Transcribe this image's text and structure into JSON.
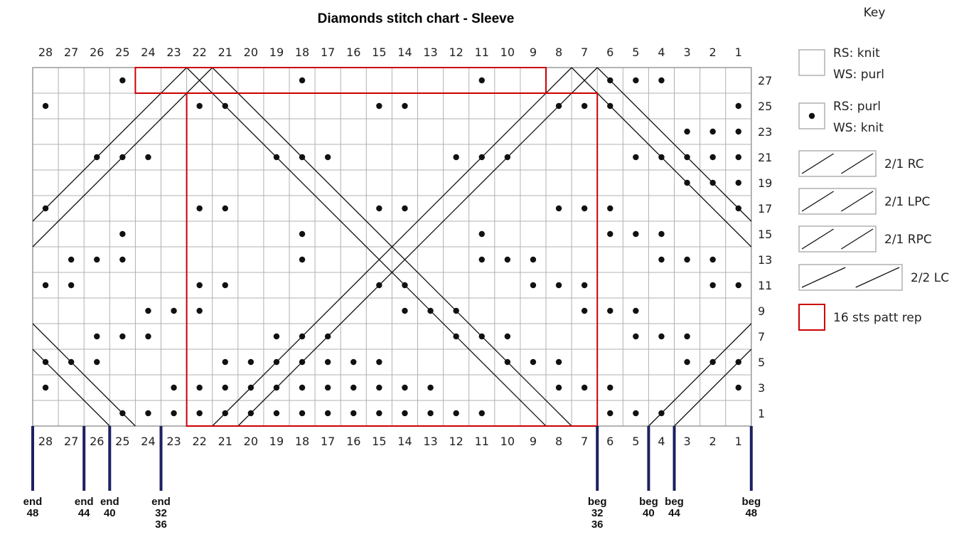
{
  "chart": {
    "title": "Diamonds stitch chart - Sleeve",
    "stitch_columns": [
      "28",
      "27",
      "26",
      "25",
      "24",
      "23",
      "22",
      "21",
      "20",
      "19",
      "18",
      "17",
      "16",
      "15",
      "14",
      "13",
      "12",
      "11",
      "10",
      "9",
      "8",
      "7",
      "6",
      "5",
      "4",
      "3",
      "2",
      "1"
    ],
    "row_labels": [
      "27",
      "25",
      "23",
      "21",
      "19",
      "17",
      "15",
      "13",
      "11",
      "9",
      "7",
      "5",
      "3",
      "1"
    ],
    "repeat": {
      "first_stitch": 22,
      "last_stitch": 7
    },
    "colors": {
      "grid": "#b0b0b0",
      "repeat_box": "#cc0000",
      "marker": "#1c2161",
      "ink": "#111111"
    }
  },
  "key": {
    "title": "Key",
    "items": [
      {
        "symbol": "knit",
        "lines": [
          "RS: knit",
          "WS: purl"
        ]
      },
      {
        "symbol": "purl",
        "lines": [
          "RS: purl",
          "WS: knit"
        ]
      },
      {
        "symbol": "2-1-rc",
        "lines": [
          "2/1 RC"
        ]
      },
      {
        "symbol": "2-1-lpc",
        "lines": [
          "2/1 LPC"
        ]
      },
      {
        "symbol": "2-1-rpc",
        "lines": [
          "2/1 RPC"
        ]
      },
      {
        "symbol": "2-2-lc",
        "lines": [
          "2/2 LC"
        ]
      },
      {
        "symbol": "repeat-box",
        "lines": [
          "16 sts patt rep"
        ]
      }
    ]
  },
  "size_markers": [
    {
      "stitch": 28,
      "lines": [
        "end",
        "48"
      ]
    },
    {
      "stitch": 26,
      "lines": [
        "end",
        "44"
      ]
    },
    {
      "stitch": 25,
      "lines": [
        "end",
        "40"
      ]
    },
    {
      "stitch": 23,
      "lines": [
        "end",
        "32",
        "36"
      ]
    },
    {
      "stitch": 7,
      "lines": [
        "beg",
        "32",
        "36"
      ]
    },
    {
      "stitch": 5,
      "lines": [
        "beg",
        "40"
      ]
    },
    {
      "stitch": 4,
      "lines": [
        "beg",
        "44"
      ]
    },
    {
      "stitch": 1,
      "lines": [
        "beg",
        "48"
      ]
    }
  ]
}
